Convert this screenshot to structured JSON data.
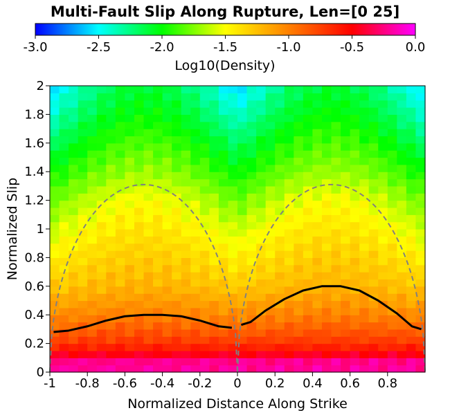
{
  "chart_data": {
    "type": "heatmap",
    "title": "Multi-Fault Slip Along Rupture, Len=[0 25]",
    "xlabel": "Normalized Distance Along Strike",
    "ylabel": "Normalized Slip",
    "xlim": [
      -1,
      1
    ],
    "ylim": [
      0,
      2
    ],
    "x_ticks": [
      "-1",
      "-0.8",
      "-0.6",
      "-0.4",
      "-0.2",
      "0",
      "0.2",
      "0.4",
      "0.6",
      "0.8"
    ],
    "y_ticks": [
      "0",
      "0.2",
      "0.4",
      "0.6",
      "0.8",
      "1",
      "1.2",
      "1.4",
      "1.6",
      "1.8",
      "2"
    ],
    "colorbar": {
      "label": "Log10(Density)",
      "range": [
        -3.0,
        0.0
      ],
      "ticks": [
        "-3.0",
        "-2.5",
        "-2.0",
        "-1.5",
        "-1.0",
        "-0.5",
        "0.0"
      ],
      "colors": [
        "#0000ff",
        "#00ffff",
        "#00ff00",
        "#ffff00",
        "#ff8000",
        "#ff0000",
        "#ff00ff"
      ]
    },
    "grid": false,
    "mean_slip_line": {
      "color": "#000000",
      "segment_1": {
        "x": [
          -0.98,
          -0.9,
          -0.8,
          -0.7,
          -0.6,
          -0.5,
          -0.4,
          -0.3,
          -0.2,
          -0.1,
          -0.03
        ],
        "y": [
          0.28,
          0.29,
          0.32,
          0.36,
          0.39,
          0.4,
          0.4,
          0.39,
          0.36,
          0.32,
          0.31
        ]
      },
      "segment_2": {
        "x": [
          0.02,
          0.07,
          0.15,
          0.25,
          0.35,
          0.45,
          0.55,
          0.65,
          0.75,
          0.85,
          0.93,
          0.98
        ],
        "y": [
          0.33,
          0.35,
          0.43,
          0.51,
          0.57,
          0.6,
          0.6,
          0.57,
          0.5,
          0.41,
          0.32,
          0.3
        ]
      }
    },
    "reference_profile": {
      "style": "dashed",
      "color": "#808080",
      "shape": "elliptical arc per fault",
      "peak_y": 1.31,
      "arcs": [
        {
          "x_start": -1.0,
          "x_end": 0.0
        },
        {
          "x_start": 0.0,
          "x_end": 1.0
        }
      ]
    },
    "density_grid": {
      "x_cells": 40,
      "y_cells": 40,
      "log10_density_by_slip": {
        "description": "log10 density rises toward low slip; peak band near slip 0.05-0.1 (~0.0), orange ~0.2-0.4 (~-0.8), yellow ~0.8-1.2 (~-1.4), green/cyan at high slip near edges (~-2.2 to -2.6)",
        "y": [
          0.0,
          0.05,
          0.1,
          0.15,
          0.2,
          0.3,
          0.4,
          0.6,
          0.8,
          1.0,
          1.2,
          1.4,
          1.6,
          1.8,
          2.0
        ],
        "center_of_fault": [
          -0.3,
          -0.1,
          -0.35,
          -0.55,
          -0.7,
          -0.85,
          -1.0,
          -1.2,
          -1.3,
          -1.4,
          -1.5,
          -1.7,
          -1.85,
          -2.0,
          -2.1
        ],
        "fault_edge": [
          -0.3,
          -0.1,
          -0.35,
          -0.55,
          -0.7,
          -0.9,
          -1.05,
          -1.3,
          -1.45,
          -1.6,
          -1.8,
          -2.0,
          -2.2,
          -2.4,
          -2.6
        ]
      }
    }
  }
}
